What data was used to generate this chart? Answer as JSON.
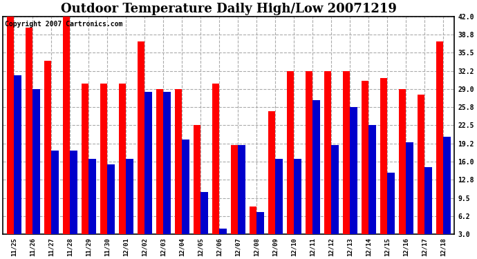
{
  "title": "Outdoor Temperature Daily High/Low 20071219",
  "copyright": "Copyright 2007 Cartronics.com",
  "categories": [
    "11/25",
    "11/26",
    "11/27",
    "11/28",
    "11/29",
    "11/30",
    "12/01",
    "12/02",
    "12/03",
    "12/04",
    "12/05",
    "12/06",
    "12/07",
    "12/08",
    "12/09",
    "12/10",
    "12/11",
    "12/12",
    "12/13",
    "12/14",
    "12/15",
    "12/16",
    "12/17",
    "12/18"
  ],
  "highs": [
    42.0,
    40.0,
    34.0,
    42.0,
    30.0,
    30.0,
    30.0,
    37.5,
    29.0,
    29.0,
    22.5,
    30.0,
    19.0,
    8.0,
    25.0,
    32.2,
    32.2,
    32.2,
    32.2,
    30.5,
    31.0,
    29.0,
    28.0,
    37.5
  ],
  "lows": [
    31.5,
    29.0,
    18.0,
    18.0,
    16.5,
    15.5,
    16.5,
    28.5,
    28.5,
    20.0,
    10.5,
    4.0,
    19.0,
    7.0,
    16.5,
    16.5,
    27.0,
    19.0,
    25.8,
    22.5,
    14.0,
    19.5,
    15.0,
    20.5
  ],
  "high_color": "#ff0000",
  "low_color": "#0000cc",
  "background_color": "#ffffff",
  "plot_background": "#ffffff",
  "grid_color": "#aaaaaa",
  "ylim": [
    3.0,
    42.0
  ],
  "yticks": [
    3.0,
    6.2,
    9.5,
    12.8,
    16.0,
    19.2,
    22.5,
    25.8,
    29.0,
    32.2,
    35.5,
    38.8,
    42.0
  ],
  "title_fontsize": 13,
  "copyright_fontsize": 7,
  "bar_bottom": 3.0
}
